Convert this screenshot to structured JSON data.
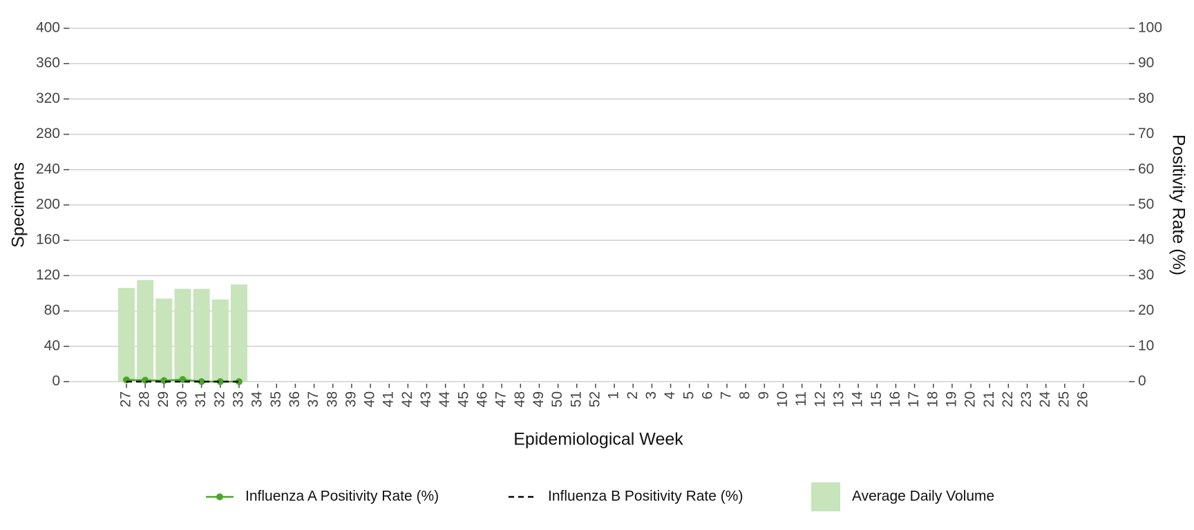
{
  "chart_data": {
    "type": "bar",
    "x_label": "Epidemiological Week",
    "y_label": "Specimens",
    "y2_label": "Positivity Rate (%)",
    "categories": [
      "27",
      "28",
      "29",
      "30",
      "31",
      "32",
      "33",
      "34",
      "35",
      "36",
      "37",
      "38",
      "39",
      "40",
      "41",
      "42",
      "43",
      "44",
      "45",
      "46",
      "47",
      "48",
      "49",
      "50",
      "51",
      "52",
      "1",
      "2",
      "3",
      "4",
      "5",
      "6",
      "7",
      "8",
      "9",
      "10",
      "11",
      "12",
      "13",
      "14",
      "15",
      "16",
      "17",
      "18",
      "19",
      "20",
      "21",
      "22",
      "23",
      "24",
      "25",
      "26"
    ],
    "ylim": [
      0,
      400
    ],
    "yticks": [
      0,
      40,
      80,
      120,
      160,
      200,
      240,
      280,
      320,
      360,
      400
    ],
    "y2lim": [
      0,
      100
    ],
    "y2ticks": [
      0,
      10,
      20,
      30,
      40,
      50,
      60,
      70,
      80,
      90,
      100
    ],
    "grid": true,
    "legend": "bottom",
    "series": [
      {
        "name": "Influenza A Positivity Rate (%)",
        "type": "line",
        "color": "#4ca52a",
        "markers": true,
        "axis": "y2",
        "values": [
          0.5,
          0.4,
          0.3,
          0.6,
          0,
          0,
          0,
          null,
          null,
          null,
          null,
          null,
          null,
          null,
          null,
          null,
          null,
          null,
          null,
          null,
          null,
          null,
          null,
          null,
          null,
          null,
          null,
          null,
          null,
          null,
          null,
          null,
          null,
          null,
          null,
          null,
          null,
          null,
          null,
          null,
          null,
          null,
          null,
          null,
          null,
          null,
          null,
          null,
          null,
          null,
          null,
          null
        ]
      },
      {
        "name": "Influenza B Positivity Rate (%)",
        "type": "line",
        "color": "#000000",
        "dashed": true,
        "axis": "y2",
        "values": [
          0,
          0,
          0,
          0,
          0,
          0,
          0,
          null,
          null,
          null,
          null,
          null,
          null,
          null,
          null,
          null,
          null,
          null,
          null,
          null,
          null,
          null,
          null,
          null,
          null,
          null,
          null,
          null,
          null,
          null,
          null,
          null,
          null,
          null,
          null,
          null,
          null,
          null,
          null,
          null,
          null,
          null,
          null,
          null,
          null,
          null,
          null,
          null,
          null,
          null,
          null,
          null
        ]
      },
      {
        "name": "Average Daily Volume",
        "type": "bar",
        "color": "#c7e4bb",
        "values": [
          106,
          115,
          94,
          105,
          105,
          93,
          110,
          null,
          null,
          null,
          null,
          null,
          null,
          null,
          null,
          null,
          null,
          null,
          null,
          null,
          null,
          null,
          null,
          null,
          null,
          null,
          null,
          null,
          null,
          null,
          null,
          null,
          null,
          null,
          null,
          null,
          null,
          null,
          null,
          null,
          null,
          null,
          null,
          null,
          null,
          null,
          null,
          null,
          null,
          null,
          null,
          null
        ]
      }
    ]
  }
}
